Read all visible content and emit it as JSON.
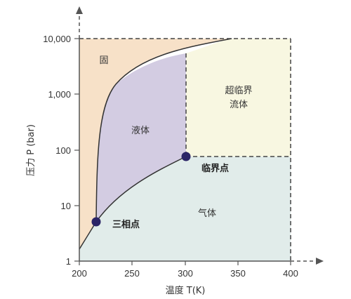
{
  "axes": {
    "x_label": "温度 T(K)",
    "y_label": "压力 P (bar)",
    "x_ticks": [
      "200",
      "250",
      "300",
      "350",
      "400"
    ],
    "y_ticks": [
      "1",
      "10",
      "100",
      "1,000",
      "10,000"
    ]
  },
  "regions": {
    "solid": "固",
    "liquid": "液体",
    "supercritical_line1": "超临界",
    "supercritical_line2": "流体",
    "gas": "气体"
  },
  "points": {
    "triple_label": "三相点",
    "critical_label": "临界点"
  },
  "colors": {
    "solid": "#f7e1c8",
    "liquid": "#d3cce2",
    "supercritical": "#f8f7e1",
    "gas": "#e1ecea",
    "curve": "#333333",
    "point": "#2b2466"
  },
  "chart_data": {
    "type": "phase-diagram",
    "x_axis": {
      "label": "温度 T(K)",
      "range": [
        200,
        400
      ],
      "ticks": [
        200,
        250,
        300,
        350,
        400
      ]
    },
    "y_axis": {
      "label": "压力 P (bar)",
      "scale": "log",
      "range": [
        1,
        10000
      ],
      "ticks": [
        1,
        10,
        100,
        1000,
        10000
      ]
    },
    "triple_point": {
      "T": 217,
      "P": 5.2,
      "label": "三相点"
    },
    "critical_point": {
      "T": 301,
      "P": 80,
      "label": "临界点"
    }
  }
}
